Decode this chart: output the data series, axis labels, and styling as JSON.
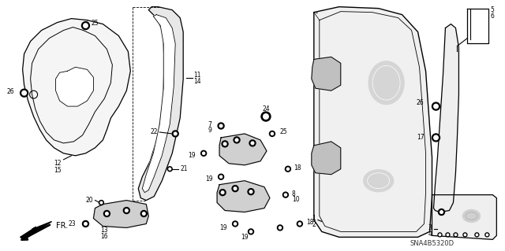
{
  "bg_color": "#ffffff",
  "line_color": "#000000",
  "fig_width": 6.4,
  "fig_height": 3.19,
  "dpi": 100,
  "watermark": "SNA4B5320D",
  "label_fontsize": 5.5
}
